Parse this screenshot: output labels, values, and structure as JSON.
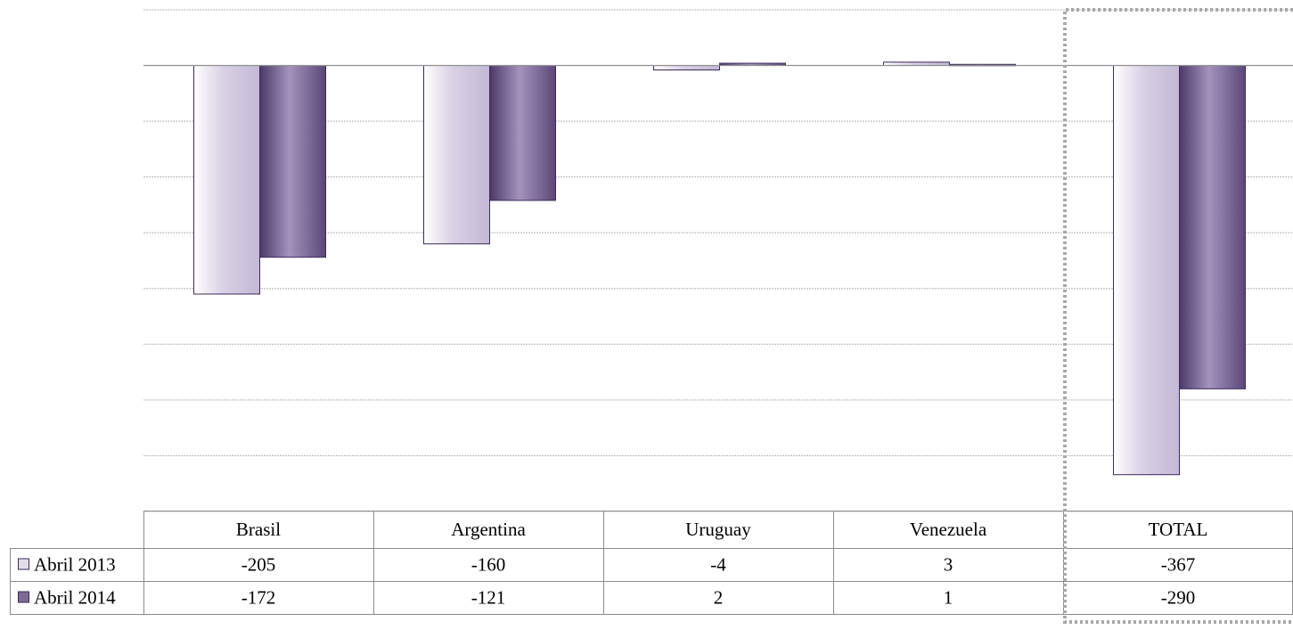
{
  "chart_data": {
    "type": "bar",
    "title": "",
    "xlabel": "",
    "ylabel": "",
    "categories": [
      "Brasil",
      "Argentina",
      "Uruguay",
      "Venezuela",
      "TOTAL"
    ],
    "series": [
      {
        "name": "Abril 2013",
        "values": [
          -205,
          -160,
          -4,
          3,
          -367
        ],
        "color": "#e2dcea",
        "border": "#3d2a5a"
      },
      {
        "name": "Abril 2014",
        "values": [
          -172,
          -121,
          2,
          1,
          -290
        ],
        "color": "#7d6a97",
        "border": "#3d2a5a"
      }
    ],
    "ylim": [
      -400,
      50
    ],
    "grid": true,
    "legend": "data-table-left",
    "highlight_category": "TOTAL"
  },
  "colors": {
    "gridline": "#b4b4b4",
    "zero_line": "#909090",
    "table_border": "#8c8c8c",
    "highlight_border": "#a8a8a8"
  }
}
